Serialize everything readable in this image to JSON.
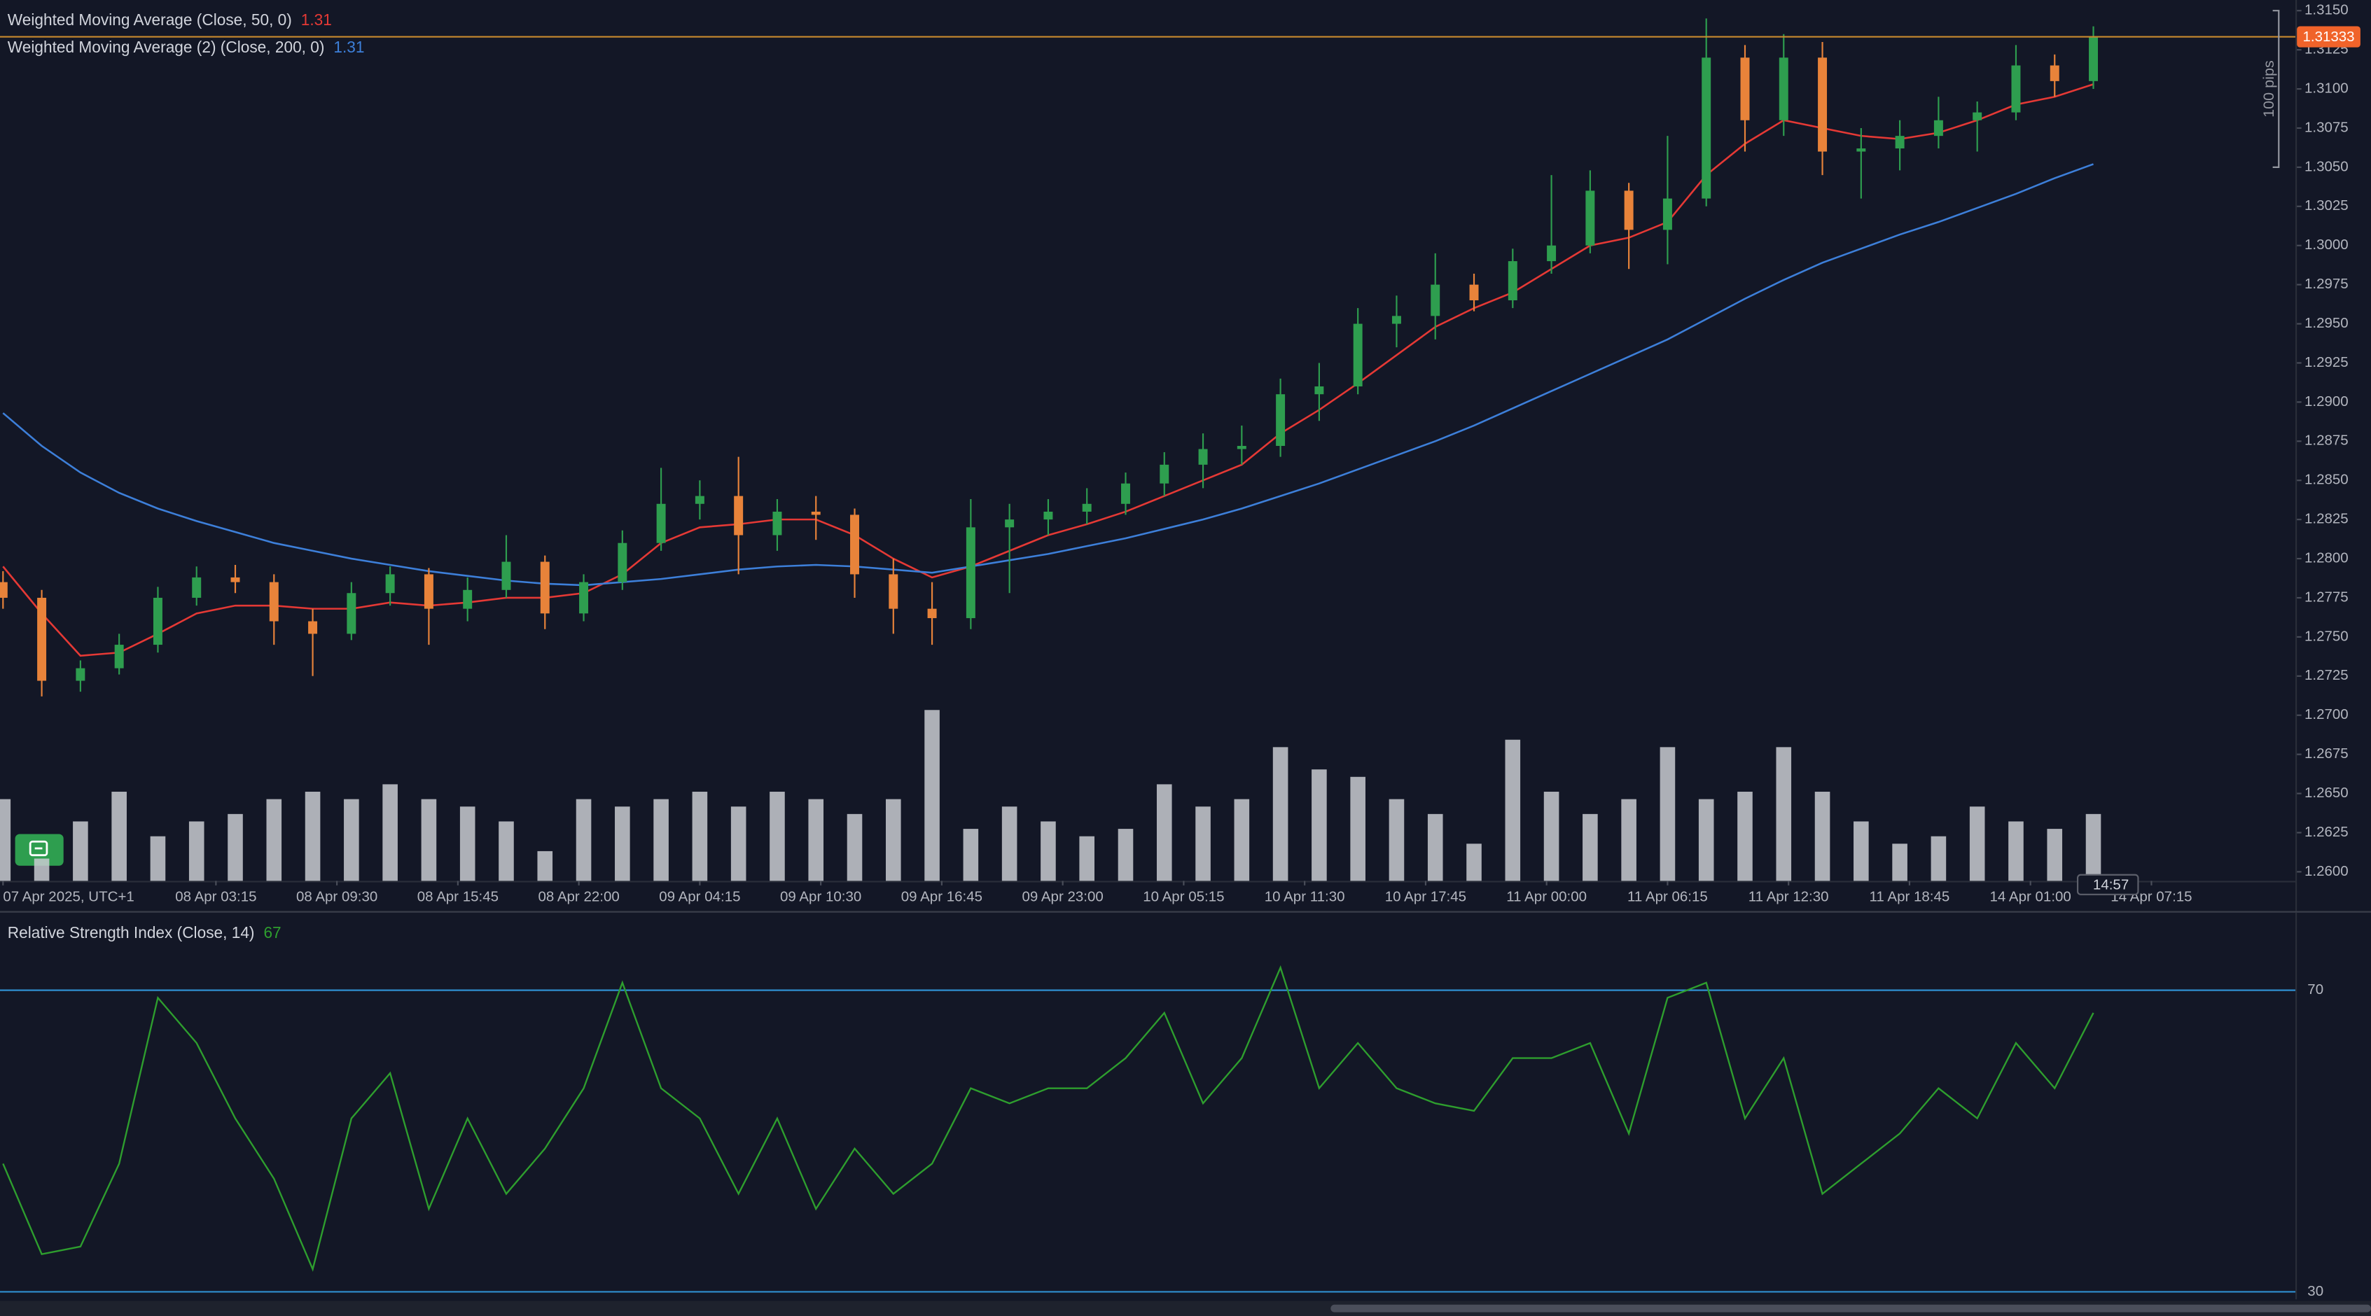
{
  "chart_data": [
    {
      "type": "candlestick",
      "x": [
        0,
        8,
        16,
        24,
        32,
        40,
        48,
        56,
        64,
        72,
        80,
        88,
        96,
        104,
        112,
        120,
        128,
        136,
        144,
        152,
        160,
        168,
        176,
        184,
        192,
        200,
        208,
        216,
        224,
        232,
        240,
        248,
        256,
        264,
        272,
        280,
        288,
        296,
        304,
        312,
        320,
        328,
        336,
        344,
        352,
        360,
        368,
        376,
        384,
        392,
        400,
        408,
        416,
        424,
        432
      ],
      "candles": [
        [
          1.2785,
          1.2792,
          1.2768,
          1.2775
        ],
        [
          1.2775,
          1.278,
          1.2712,
          1.2722
        ],
        [
          1.2722,
          1.2735,
          1.2715,
          1.273
        ],
        [
          1.273,
          1.2752,
          1.2726,
          1.2745
        ],
        [
          1.2745,
          1.2782,
          1.274,
          1.2775
        ],
        [
          1.2775,
          1.2795,
          1.277,
          1.2788
        ],
        [
          1.2788,
          1.2796,
          1.2778,
          1.2785
        ],
        [
          1.2785,
          1.279,
          1.2745,
          1.276
        ],
        [
          1.276,
          1.2768,
          1.2725,
          1.2752
        ],
        [
          1.2752,
          1.2785,
          1.2748,
          1.2778
        ],
        [
          1.2778,
          1.2795,
          1.277,
          1.279
        ],
        [
          1.279,
          1.2794,
          1.2745,
          1.2768
        ],
        [
          1.2768,
          1.2788,
          1.276,
          1.278
        ],
        [
          1.278,
          1.2815,
          1.2775,
          1.2798
        ],
        [
          1.2798,
          1.2802,
          1.2755,
          1.2765
        ],
        [
          1.2765,
          1.279,
          1.276,
          1.2785
        ],
        [
          1.2785,
          1.2818,
          1.278,
          1.281
        ],
        [
          1.281,
          1.2858,
          1.2805,
          1.2835
        ],
        [
          1.2835,
          1.285,
          1.2825,
          1.284
        ],
        [
          1.284,
          1.2865,
          1.279,
          1.2815
        ],
        [
          1.2815,
          1.2838,
          1.2805,
          1.283
        ],
        [
          1.283,
          1.284,
          1.2812,
          1.2828
        ],
        [
          1.2828,
          1.2832,
          1.2775,
          1.279
        ],
        [
          1.279,
          1.28,
          1.2752,
          1.2768
        ],
        [
          1.2768,
          1.2785,
          1.2745,
          1.2762
        ],
        [
          1.2762,
          1.2838,
          1.2755,
          1.282
        ],
        [
          1.282,
          1.2835,
          1.2778,
          1.2825
        ],
        [
          1.2825,
          1.2838,
          1.2815,
          1.283
        ],
        [
          1.283,
          1.2845,
          1.2822,
          1.2835
        ],
        [
          1.2835,
          1.2855,
          1.2828,
          1.2848
        ],
        [
          1.2848,
          1.2868,
          1.284,
          1.286
        ],
        [
          1.286,
          1.288,
          1.2845,
          1.287
        ],
        [
          1.287,
          1.2885,
          1.286,
          1.2872
        ],
        [
          1.2872,
          1.2915,
          1.2865,
          1.2905
        ],
        [
          1.2905,
          1.2925,
          1.2888,
          1.291
        ],
        [
          1.291,
          1.296,
          1.2905,
          1.295
        ],
        [
          1.295,
          1.2968,
          1.2935,
          1.2955
        ],
        [
          1.2955,
          1.2995,
          1.294,
          1.2975
        ],
        [
          1.2975,
          1.2982,
          1.2958,
          1.2965
        ],
        [
          1.2965,
          1.2998,
          1.296,
          1.299
        ],
        [
          1.299,
          1.3045,
          1.2982,
          1.3
        ],
        [
          1.3,
          1.3048,
          1.2995,
          1.3035
        ],
        [
          1.3035,
          1.304,
          1.2985,
          1.301
        ],
        [
          1.301,
          1.307,
          1.2988,
          1.303
        ],
        [
          1.303,
          1.3145,
          1.3025,
          1.312
        ],
        [
          1.312,
          1.3128,
          1.306,
          1.308
        ],
        [
          1.308,
          1.3135,
          1.307,
          1.312
        ],
        [
          1.312,
          1.313,
          1.3045,
          1.306
        ],
        [
          1.306,
          1.3075,
          1.303,
          1.3062
        ],
        [
          1.3062,
          1.308,
          1.3048,
          1.307
        ],
        [
          1.307,
          1.3095,
          1.3062,
          1.308
        ],
        [
          1.308,
          1.3092,
          1.306,
          1.3085
        ],
        [
          1.3085,
          1.3128,
          1.308,
          1.3115
        ],
        [
          1.3115,
          1.3122,
          1.3095,
          1.3105
        ],
        [
          1.3105,
          1.314,
          1.31,
          1.31333
        ]
      ],
      "up_color": "#2e9e4f",
      "down_color": "#e8833a",
      "series": [
        {
          "name": "Weighted Moving Average (Close, 50, 0)",
          "last_value_label": "1.31",
          "color": "#e53935",
          "values": [
            1.2795,
            1.2765,
            1.2738,
            1.274,
            1.2752,
            1.2765,
            1.277,
            1.277,
            1.2768,
            1.2768,
            1.2772,
            1.277,
            1.2772,
            1.2775,
            1.2775,
            1.2778,
            1.279,
            1.281,
            1.282,
            1.2822,
            1.2825,
            1.2825,
            1.2815,
            1.28,
            1.2788,
            1.2795,
            1.2805,
            1.2815,
            1.2822,
            1.283,
            1.284,
            1.285,
            1.286,
            1.288,
            1.2895,
            1.2912,
            1.293,
            1.2948,
            1.296,
            1.297,
            1.2985,
            1.3,
            1.3005,
            1.3015,
            1.3045,
            1.3065,
            1.308,
            1.3075,
            1.307,
            1.3068,
            1.3072,
            1.308,
            1.309,
            1.3095,
            1.3103
          ]
        },
        {
          "name": "Weighted Moving Average (2) (Close, 200, 0)",
          "last_value_label": "1.31",
          "color": "#3d7fd9",
          "values": [
            1.2893,
            1.2872,
            1.2855,
            1.2842,
            1.2832,
            1.2824,
            1.2817,
            1.281,
            1.2805,
            1.28,
            1.2796,
            1.2792,
            1.2789,
            1.2786,
            1.2784,
            1.2783,
            1.2785,
            1.2787,
            1.279,
            1.2793,
            1.2795,
            1.2796,
            1.2795,
            1.2793,
            1.2791,
            1.2795,
            1.2799,
            1.2803,
            1.2808,
            1.2813,
            1.2819,
            1.2825,
            1.2832,
            1.284,
            1.2848,
            1.2857,
            1.2866,
            1.2875,
            1.2885,
            1.2896,
            1.2907,
            1.2918,
            1.2929,
            1.294,
            1.2953,
            1.2966,
            1.2978,
            1.2989,
            1.2998,
            1.3007,
            1.3015,
            1.3024,
            1.3033,
            1.3043,
            1.3052
          ]
        }
      ],
      "volume": {
        "color": "#c9cbd1",
        "ylim": [
          0,
          120
        ],
        "values": [
          55,
          15,
          40,
          60,
          30,
          40,
          45,
          55,
          60,
          55,
          65,
          55,
          50,
          40,
          20,
          55,
          50,
          55,
          60,
          50,
          60,
          55,
          45,
          55,
          115,
          35,
          50,
          40,
          30,
          35,
          65,
          50,
          55,
          90,
          75,
          70,
          55,
          45,
          25,
          95,
          60,
          45,
          55,
          90,
          55,
          60,
          90,
          60,
          40,
          25,
          30,
          50,
          40,
          35,
          45
        ]
      },
      "xlim": [
        -0.625,
        473.75
      ],
      "xticks": [
        {
          "value": 0,
          "label": "07 Apr 2025, UTC+1"
        },
        {
          "value": 44,
          "label": "08 Apr 03:15"
        },
        {
          "value": 69,
          "label": "08 Apr 09:30"
        },
        {
          "value": 94,
          "label": "08 Apr 15:45"
        },
        {
          "value": 119,
          "label": "08 Apr 22:00"
        },
        {
          "value": 144,
          "label": "09 Apr 04:15"
        },
        {
          "value": 169,
          "label": "09 Apr 10:30"
        },
        {
          "value": 194,
          "label": "09 Apr 16:45"
        },
        {
          "value": 219,
          "label": "09 Apr 23:00"
        },
        {
          "value": 244,
          "label": "10 Apr 05:15"
        },
        {
          "value": 269,
          "label": "10 Apr 11:30"
        },
        {
          "value": 294,
          "label": "10 Apr 17:45"
        },
        {
          "value": 319,
          "label": "11 Apr 00:00"
        },
        {
          "value": 344,
          "label": "11 Apr 06:15"
        },
        {
          "value": 369,
          "label": "11 Apr 12:30"
        },
        {
          "value": 394,
          "label": "11 Apr 18:45"
        },
        {
          "value": 419,
          "label": "14 Apr 01:00"
        },
        {
          "value": 444,
          "label": "14 Apr 07:15"
        }
      ],
      "ylim": [
        1.25942,
        1.31568
      ],
      "yticks": [
        {
          "value": 1.315,
          "label": "1.3150"
        },
        {
          "value": 1.3125,
          "label": "1.3125"
        },
        {
          "value": 1.31,
          "label": "1.3100"
        },
        {
          "value": 1.3075,
          "label": "1.3075"
        },
        {
          "value": 1.305,
          "label": "1.3050"
        },
        {
          "value": 1.3025,
          "label": "1.3025"
        },
        {
          "value": 1.3,
          "label": "1.3000"
        },
        {
          "value": 1.2975,
          "label": "1.2975"
        },
        {
          "value": 1.295,
          "label": "1.2950"
        },
        {
          "value": 1.2925,
          "label": "1.2925"
        },
        {
          "value": 1.29,
          "label": "1.2900"
        },
        {
          "value": 1.2875,
          "label": "1.2875"
        },
        {
          "value": 1.285,
          "label": "1.2850"
        },
        {
          "value": 1.2825,
          "label": "1.2825"
        },
        {
          "value": 1.28,
          "label": "1.2800"
        },
        {
          "value": 1.2775,
          "label": "1.2775"
        },
        {
          "value": 1.275,
          "label": "1.2750"
        },
        {
          "value": 1.2725,
          "label": "1.2725"
        },
        {
          "value": 1.27,
          "label": "1.2700"
        },
        {
          "value": 1.2675,
          "label": "1.2675"
        },
        {
          "value": 1.265,
          "label": "1.2650"
        },
        {
          "value": 1.2625,
          "label": "1.2625"
        },
        {
          "value": 1.26,
          "label": "1.2600"
        }
      ],
      "measure": {
        "label": "100 pips",
        "from": 1.305,
        "to": 1.315
      },
      "countdown": "14:57",
      "price_line_color": "#c88a2e"
    },
    {
      "type": "line",
      "x": [
        0,
        8,
        16,
        24,
        32,
        40,
        48,
        56,
        64,
        72,
        80,
        88,
        96,
        104,
        112,
        120,
        128,
        136,
        144,
        152,
        160,
        168,
        176,
        184,
        192,
        200,
        208,
        216,
        224,
        232,
        240,
        248,
        256,
        264,
        272,
        280,
        288,
        296,
        304,
        312,
        320,
        328,
        336,
        344,
        352,
        360,
        368,
        376,
        384,
        392,
        400,
        408,
        416,
        424,
        432
      ],
      "xlim": [
        -0.625,
        473.75
      ],
      "series": [
        {
          "name": "Relative Strength Index (Close, 14)",
          "last_value_label": "67",
          "color": "#2e9e2e",
          "values": [
            47,
            35,
            36,
            47,
            69,
            63,
            53,
            45,
            33,
            53,
            59,
            41,
            53,
            43,
            49,
            57,
            71,
            57,
            53,
            43,
            53,
            41,
            49,
            43,
            47,
            57,
            55,
            57,
            57,
            61,
            67,
            55,
            61,
            73,
            57,
            63,
            57,
            55,
            54,
            61,
            61,
            63,
            51,
            69,
            71,
            53,
            61,
            43,
            47,
            51,
            57,
            53,
            63,
            57,
            67
          ]
        }
      ],
      "ylim": [
        29.4,
        80.3
      ],
      "yticks": [
        70,
        30
      ],
      "band_color": "#2f8fd0"
    }
  ]
}
